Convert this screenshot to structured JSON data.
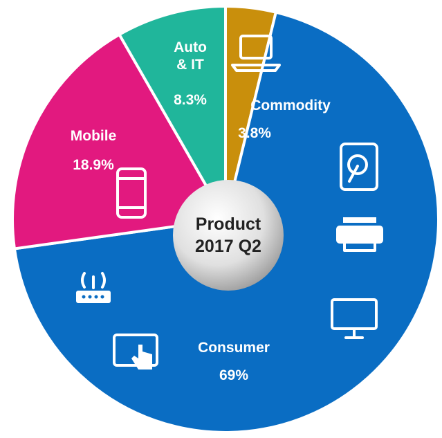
{
  "chart_data": {
    "type": "pie",
    "center_label": [
      "Product",
      "2017 Q2"
    ],
    "categories": [
      "Commodity",
      "Consumer",
      "Mobile",
      "Auto & IT"
    ],
    "values": [
      3.8,
      69,
      18.9,
      8.3
    ],
    "value_labels": [
      "3.8%",
      "69%",
      "18.9%",
      "8.3%"
    ],
    "colors": [
      "#c98f0c",
      "#0a6dc3",
      "#e2197f",
      "#20b69b"
    ]
  }
}
